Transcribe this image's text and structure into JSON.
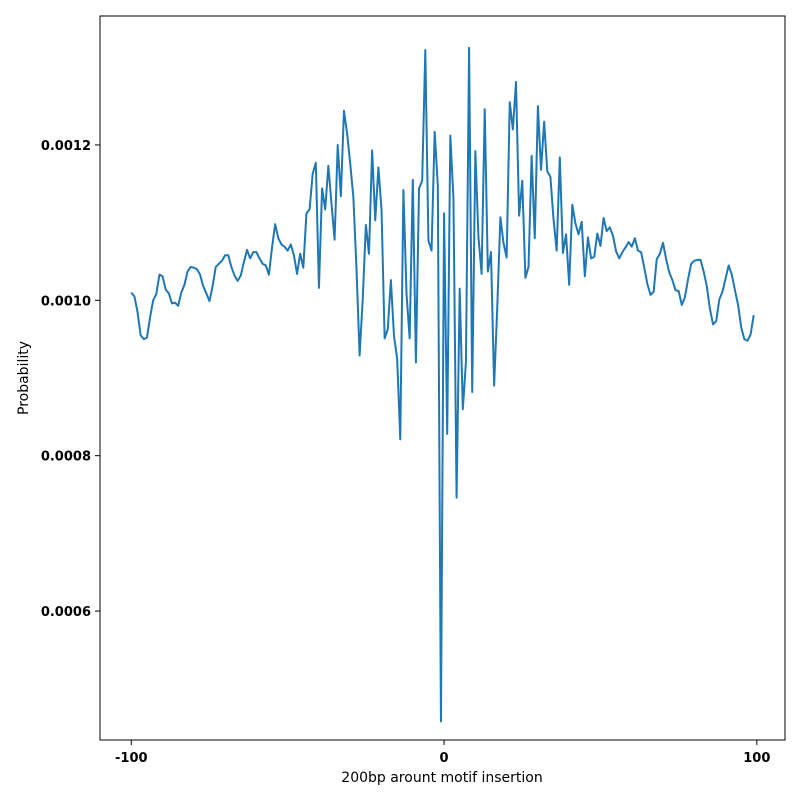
{
  "chart_data": {
    "type": "line",
    "title": "",
    "xlabel": "200bp arount motif insertion",
    "ylabel": "Probability",
    "xlim": [
      -110,
      109
    ],
    "ylim": [
      0.000434,
      0.001366
    ],
    "xticks": [
      -100,
      0,
      100
    ],
    "xtick_labels": [
      "-100",
      "0",
      "100"
    ],
    "yticks": [
      0.0006,
      0.0008,
      0.001,
      0.0012
    ],
    "ytick_labels": [
      "0.0006",
      "0.0008",
      "0.0010",
      "0.0012"
    ],
    "grid": false,
    "legend": "none",
    "line_color": "#1f77b4",
    "series": [
      {
        "x": [
          -100,
          -99,
          -98,
          -97,
          -96,
          -95,
          -94,
          -93,
          -92,
          -91,
          -90,
          -89,
          -88,
          -87,
          -86,
          -85,
          -84,
          -83,
          -82,
          -81,
          -80,
          -79,
          -78,
          -77,
          -76,
          -75,
          -74,
          -73,
          -72,
          -71,
          -70,
          -69,
          -68,
          -67,
          -66,
          -65,
          -64,
          -63,
          -62,
          -61,
          -60,
          -59,
          -58,
          -57,
          -56,
          -55,
          -54,
          -53,
          -52,
          -51,
          -50,
          -49,
          -48,
          -47,
          -46,
          -45,
          -44,
          -43,
          -42,
          -41,
          -40,
          -39,
          -38,
          -37,
          -36,
          -35,
          -34,
          -33,
          -32,
          -31,
          -30,
          -29,
          -28,
          -27,
          -26,
          -25,
          -24,
          -23,
          -22,
          -21,
          -20,
          -19,
          -18,
          -17,
          -16,
          -15,
          -14,
          -13,
          -12,
          -11,
          -10,
          -9,
          -8,
          -7,
          -6,
          -5,
          -4,
          -3,
          -2,
          -1,
          0,
          1,
          2,
          3,
          4,
          5,
          6,
          7,
          8,
          9,
          10,
          11,
          12,
          13,
          14,
          15,
          16,
          17,
          18,
          19,
          20,
          21,
          22,
          23,
          24,
          25,
          26,
          27,
          28,
          29,
          30,
          31,
          32,
          33,
          34,
          35,
          36,
          37,
          38,
          39,
          40,
          41,
          42,
          43,
          44,
          45,
          46,
          47,
          48,
          49,
          50,
          51,
          52,
          53,
          54,
          55,
          56,
          57,
          58,
          59,
          60,
          61,
          62,
          63,
          64,
          65,
          66,
          67,
          68,
          69,
          70,
          71,
          72,
          73,
          74,
          75,
          76,
          77,
          78,
          79,
          80,
          81,
          82,
          83,
          84,
          85,
          86,
          87,
          88,
          89,
          90,
          91,
          92,
          93,
          94,
          95,
          96,
          97,
          98,
          99
        ],
        "values": [
          0.00101,
          0.001005,
          0.000985,
          0.000955,
          0.00095,
          0.000952,
          0.000978,
          0.001,
          0.001008,
          0.001033,
          0.001031,
          0.001014,
          0.001009,
          0.000996,
          0.000997,
          0.000993,
          0.00101,
          0.00102,
          0.001037,
          0.001043,
          0.001042,
          0.00104,
          0.001033,
          0.001018,
          0.001009,
          0.000999,
          0.001018,
          0.001043,
          0.001047,
          0.001051,
          0.001058,
          0.001058,
          0.001043,
          0.001032,
          0.001025,
          0.001032,
          0.001049,
          0.001065,
          0.001054,
          0.001062,
          0.001062,
          0.001054,
          0.001047,
          0.001045,
          0.001033,
          0.001068,
          0.001098,
          0.00108,
          0.001072,
          0.001069,
          0.001064,
          0.001072,
          0.001058,
          0.001034,
          0.00106,
          0.001042,
          0.001112,
          0.001117,
          0.001163,
          0.001177,
          0.001016,
          0.001144,
          0.001117,
          0.001173,
          0.001125,
          0.001078,
          0.0012,
          0.001134,
          0.001244,
          0.001215,
          0.001176,
          0.001133,
          0.001041,
          0.000929,
          0.001002,
          0.001097,
          0.00106,
          0.001193,
          0.001103,
          0.001171,
          0.001117,
          0.000951,
          0.000963,
          0.001026,
          0.000954,
          0.000925,
          0.000821,
          0.001142,
          0.001008,
          0.000951,
          0.001155,
          0.00092,
          0.001144,
          0.001154,
          0.001322,
          0.001077,
          0.001064,
          0.001217,
          0.001148,
          0.000458,
          0.001112,
          0.000828,
          0.001212,
          0.001131,
          0.000746,
          0.001015,
          0.00086,
          0.000921,
          0.001325,
          0.000882,
          0.001192,
          0.001081,
          0.001034,
          0.001246,
          0.001037,
          0.001062,
          0.00089,
          0.00099,
          0.001107,
          0.001074,
          0.001055,
          0.001255,
          0.00122,
          0.001281,
          0.001109,
          0.001154,
          0.001029,
          0.001043,
          0.001186,
          0.00108,
          0.00125,
          0.001168,
          0.00123,
          0.001166,
          0.001159,
          0.001104,
          0.001064,
          0.001184,
          0.001061,
          0.001085,
          0.00102,
          0.001123,
          0.001099,
          0.001085,
          0.001101,
          0.001031,
          0.001081,
          0.001054,
          0.001056,
          0.001086,
          0.00107,
          0.001106,
          0.001089,
          0.001094,
          0.001083,
          0.001063,
          0.001054,
          0.001062,
          0.001068,
          0.001075,
          0.001069,
          0.00108,
          0.001064,
          0.001062,
          0.001042,
          0.001021,
          0.001007,
          0.001011,
          0.001053,
          0.00106,
          0.001074,
          0.001053,
          0.001036,
          0.001026,
          0.001013,
          0.001012,
          0.000994,
          0.001004,
          0.001027,
          0.001047,
          0.001051,
          0.001052,
          0.001052,
          0.001037,
          0.001018,
          0.000989,
          0.000969,
          0.000973,
          0.001001,
          0.001011,
          0.001028,
          0.001045,
          0.001033,
          0.001013,
          0.000994,
          0.000965,
          0.00095,
          0.000948,
          0.000956,
          0.000981
        ]
      }
    ]
  }
}
